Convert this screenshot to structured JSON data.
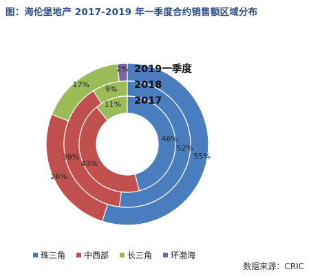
{
  "title": "图：海伦堡地产 2017-2019 年一季度合约销售额区域分布",
  "source": "数据来源：CRIC",
  "colors": {
    "珠三角": "#4a7dbd",
    "中西部": "#c0504d",
    "长三角": "#9bbb59",
    "环渤海": "#8064a2"
  },
  "chart_data": {
    "type": "pie",
    "subtype": "multi-ring doughnut",
    "legend": [
      "珠三角",
      "中西部",
      "长三角",
      "环渤海"
    ],
    "legend_position": "bottom",
    "rings": [
      {
        "name": "2019一季度",
        "position": "outer",
        "values": {
          "珠三角": 55,
          "中西部": 26,
          "长三角": 17,
          "环渤海": 2
        },
        "labels": {
          "珠三角": "55%",
          "中西部": "26%",
          "长三角": "17%",
          "环渤海": "2%"
        }
      },
      {
        "name": "2018",
        "position": "middle",
        "values": {
          "珠三角": 52,
          "中西部": 39,
          "长三角": 9,
          "环渤海": 0
        },
        "labels": {
          "珠三角": "52%",
          "中西部": "39%",
          "长三角": "9%"
        }
      },
      {
        "name": "2017",
        "position": "inner",
        "values": {
          "珠三角": 46,
          "中西部": 43,
          "长三角": 11,
          "环渤海": 0
        },
        "labels": {
          "珠三角": "46%",
          "中西部": "43%",
          "长三角": "11%"
        }
      }
    ]
  }
}
